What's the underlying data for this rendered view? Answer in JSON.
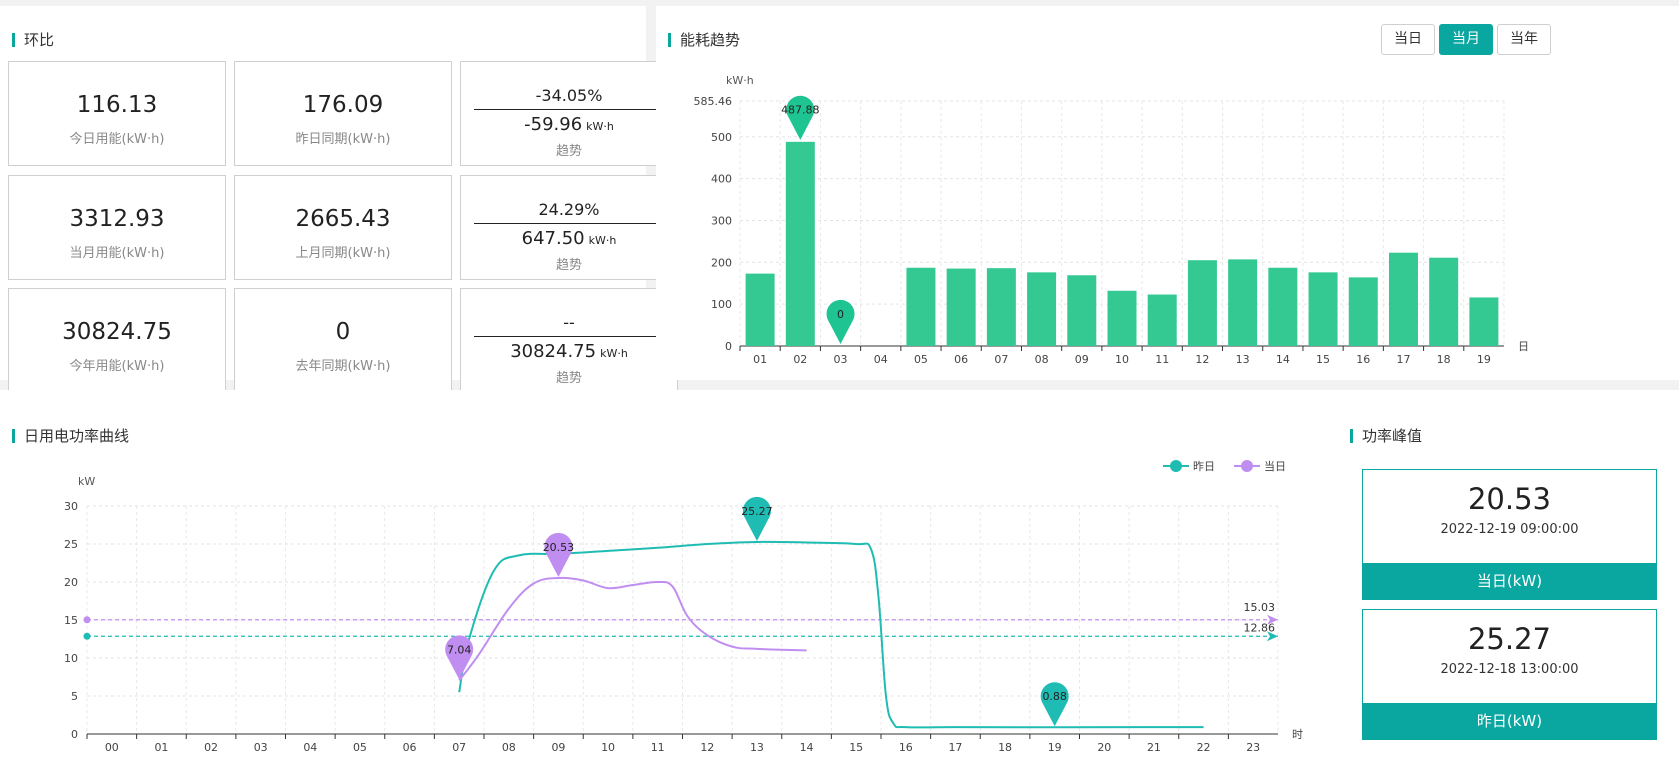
{
  "panels": {
    "compare_title": "环比",
    "trend_title": "能耗趋势",
    "power_title": "日用电功率曲线",
    "peak_title": "功率峰值"
  },
  "stats": {
    "rows": [
      {
        "current_value": "116.13",
        "current_label": "今日用能(kW·h)",
        "prev_value": "176.09",
        "prev_label": "昨日同期(kW·h)",
        "percent": "-34.05%",
        "diff": "-59.96",
        "unit": "kW·h",
        "trend_label": "趋势"
      },
      {
        "current_value": "3312.93",
        "current_label": "当月用能(kW·h)",
        "prev_value": "2665.43",
        "prev_label": "上月同期(kW·h)",
        "percent": "24.29%",
        "diff": "647.50",
        "unit": "kW·h",
        "trend_label": "趋势"
      },
      {
        "current_value": "30824.75",
        "current_label": "今年用能(kW·h)",
        "prev_value": "0",
        "prev_label": "去年同期(kW·h)",
        "percent": "--",
        "diff": "30824.75",
        "unit": "kW·h",
        "trend_label": "趋势"
      }
    ]
  },
  "period_buttons": [
    "当日",
    "当月",
    "当年"
  ],
  "active_period": "当月",
  "peak": {
    "today": {
      "value": "20.53",
      "time": "2022-12-19 09:00:00",
      "label": "当日(kW)"
    },
    "yesterday": {
      "value": "25.27",
      "time": "2022-12-18 13:00:00",
      "label": "昨日(kW)"
    }
  },
  "colors": {
    "accent": "#0aa7a0",
    "bar": "#34c992",
    "yesterday": "#1fbcb3",
    "today": "#c08ef0"
  },
  "chart_data": [
    {
      "type": "bar",
      "ylabel": "kW·h",
      "xlabel": "日",
      "ylim": [
        0,
        585.46
      ],
      "yticks": [
        "0",
        "100",
        "200",
        "300",
        "400",
        "500",
        "585.46"
      ],
      "categories": [
        "01",
        "02",
        "03",
        "04",
        "05",
        "06",
        "07",
        "08",
        "09",
        "10",
        "11",
        "12",
        "13",
        "14",
        "15",
        "16",
        "17",
        "18",
        "19"
      ],
      "values": [
        173,
        487.88,
        0,
        null,
        187,
        185,
        186,
        176,
        169,
        132,
        123,
        205,
        207,
        187,
        176,
        164,
        223,
        211,
        116
      ],
      "markers": [
        {
          "category": "02",
          "label": "487.88"
        },
        {
          "category": "03",
          "label": "0"
        }
      ],
      "grid": true
    },
    {
      "type": "line",
      "ylabel": "kW",
      "xlabel": "时",
      "ylim": [
        0,
        30
      ],
      "yticks": [
        "0",
        "5",
        "10",
        "15",
        "20",
        "25",
        "30"
      ],
      "categories": [
        "00",
        "01",
        "02",
        "03",
        "04",
        "05",
        "06",
        "07",
        "08",
        "09",
        "10",
        "11",
        "12",
        "13",
        "14",
        "15",
        "16",
        "17",
        "18",
        "19",
        "20",
        "21",
        "22",
        "23"
      ],
      "legend_position": "top-right",
      "series": [
        {
          "name": "昨日",
          "points": [
            [
              7.0,
              5.5
            ],
            [
              7.2,
              12.5
            ],
            [
              7.7,
              21.5
            ],
            [
              8.2,
              23.5
            ],
            [
              9.0,
              23.7
            ],
            [
              10.0,
              24.1
            ],
            [
              11.0,
              24.5
            ],
            [
              12.0,
              25.0
            ],
            [
              13.0,
              25.27
            ],
            [
              14.0,
              25.2
            ],
            [
              15.0,
              25.0
            ],
            [
              15.3,
              24.3
            ],
            [
              15.45,
              18
            ],
            [
              15.6,
              5
            ],
            [
              15.75,
              1.4
            ],
            [
              16.0,
              0.9
            ],
            [
              17.0,
              0.9
            ],
            [
              19.0,
              0.88
            ],
            [
              21.0,
              0.9
            ],
            [
              22.0,
              0.9
            ]
          ],
          "average": "12.86",
          "average_value": 12.86
        },
        {
          "name": "当日",
          "points": [
            [
              7.0,
              7.04
            ],
            [
              7.4,
              10.5
            ],
            [
              8.0,
              16.5
            ],
            [
              8.5,
              19.8
            ],
            [
              9.0,
              20.53
            ],
            [
              9.5,
              20.2
            ],
            [
              10.0,
              19.2
            ],
            [
              10.5,
              19.6
            ],
            [
              11.0,
              20.0
            ],
            [
              11.3,
              19.4
            ],
            [
              11.6,
              15.5
            ],
            [
              12.0,
              13.0
            ],
            [
              12.5,
              11.5
            ],
            [
              13.0,
              11.2
            ],
            [
              14.0,
              11.0
            ]
          ],
          "average": "15.03",
          "average_value": 15.03
        }
      ],
      "markers": [
        {
          "series": "当日",
          "x": 7.0,
          "label": "7.04"
        },
        {
          "series": "当日",
          "x": 9.0,
          "label": "20.53"
        },
        {
          "series": "昨日",
          "x": 13.0,
          "label": "25.27"
        },
        {
          "series": "昨日",
          "x": 19.0,
          "label": "0.88"
        }
      ],
      "grid": true
    }
  ]
}
